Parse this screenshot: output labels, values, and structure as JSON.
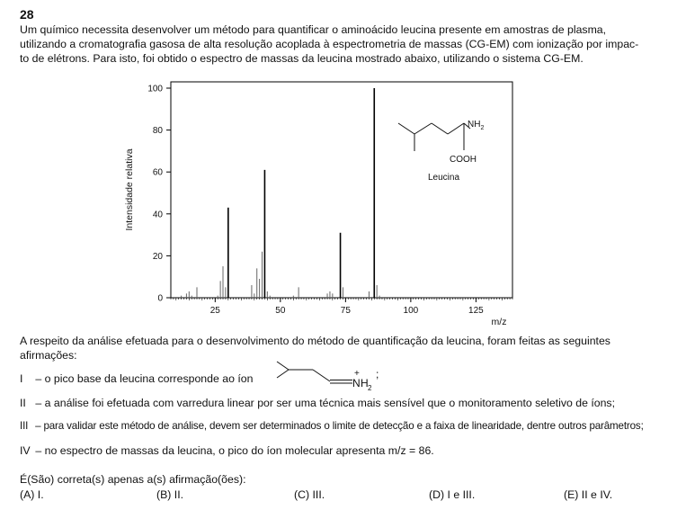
{
  "question": {
    "number": "28",
    "intro_lines": [
      "Um químico necessita desenvolver um método para quantificar o aminoácido leucina presente em amostras de plasma,",
      "utilizando a cromatografia gasosa de alta resolução acoplada à espectrometria de massas (CG-EM) com ionização por impac-",
      "to de elétrons. Para isto, foi obtido o espectro de massas da leucina mostrado abaixo, utilizando o sistema CG-EM."
    ],
    "context_lines": [
      "A respeito da análise efetuada para o desenvolvimento do método de quantificação da leucina, foram feitas as seguintes",
      "afirmações:"
    ],
    "statements": [
      {
        "roman": "I",
        "text": "– o pico base da leucina corresponde ao íon"
      },
      {
        "roman": "II",
        "text": "– a análise foi efetuada com varredura linear por ser uma técnica mais sensível que o monitoramento seletivo de íons;"
      },
      {
        "roman": "III",
        "text": "– para validar este método de análise, devem ser determinados o limite de detecção e a faixa de linearidade, dentre outros parâmetros;"
      },
      {
        "roman": "IV",
        "text": "– no espectro de massas da leucina, o pico do íon molecular apresenta m/z = 86."
      }
    ],
    "ion_labels": {
      "plus": "+",
      "n": "N",
      "h": "H",
      "sub": "2",
      "semicolon": ";"
    },
    "prompt": "É(São) correta(s) apenas a(s) afirmação(ões):",
    "options": [
      "(A) I.",
      "(B) II.",
      "(C) III.",
      "(D) I e III.",
      "(E) II e IV."
    ]
  },
  "chart_data": {
    "type": "bar",
    "ylabel": "Intensidade relativa",
    "xlabel": "m/z",
    "xlim": [
      8,
      139
    ],
    "ylim": [
      0,
      103
    ],
    "xticks": [
      25,
      50,
      75,
      100,
      125
    ],
    "yticks": [
      0,
      20,
      40,
      60,
      80,
      100
    ],
    "molecule_label": "Leucina",
    "structure_labels": {
      "nh2": "NH",
      "nh2_sub": "2",
      "cooh": "COOH"
    },
    "peaks": [
      {
        "mz": 12,
        "intensity": 1
      },
      {
        "mz": 14,
        "intensity": 2
      },
      {
        "mz": 15,
        "intensity": 3
      },
      {
        "mz": 16,
        "intensity": 1
      },
      {
        "mz": 18,
        "intensity": 5
      },
      {
        "mz": 26,
        "intensity": 1
      },
      {
        "mz": 27,
        "intensity": 8
      },
      {
        "mz": 28,
        "intensity": 15
      },
      {
        "mz": 29,
        "intensity": 5
      },
      {
        "mz": 30,
        "intensity": 43
      },
      {
        "mz": 39,
        "intensity": 6
      },
      {
        "mz": 40,
        "intensity": 2
      },
      {
        "mz": 41,
        "intensity": 14
      },
      {
        "mz": 42,
        "intensity": 9
      },
      {
        "mz": 43,
        "intensity": 22
      },
      {
        "mz": 44,
        "intensity": 61
      },
      {
        "mz": 45,
        "intensity": 3
      },
      {
        "mz": 46,
        "intensity": 1
      },
      {
        "mz": 55,
        "intensity": 1
      },
      {
        "mz": 57,
        "intensity": 5
      },
      {
        "mz": 68,
        "intensity": 2
      },
      {
        "mz": 69,
        "intensity": 3
      },
      {
        "mz": 70,
        "intensity": 2
      },
      {
        "mz": 73,
        "intensity": 31
      },
      {
        "mz": 74,
        "intensity": 5
      },
      {
        "mz": 84,
        "intensity": 3
      },
      {
        "mz": 86,
        "intensity": 100
      },
      {
        "mz": 87,
        "intensity": 6
      },
      {
        "mz": 88,
        "intensity": 1
      }
    ]
  }
}
